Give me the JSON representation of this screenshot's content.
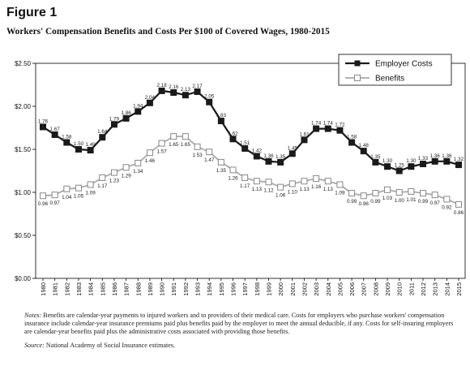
{
  "figure_label": "Figure 1",
  "notes_label": "Notes:",
  "notes_text": "Benefits are calendar-year payments to injured workers and to providers of their medical care. Costs for employers who purchase workers' compensation insurance include calendar-year insurance premiums paid plus benefits paid by the employer to meet the annual deducible, if any. Costs for self-insuring employers are calendar-year benefits paid plus the administrative costs associated with providing those benefits.",
  "source_label": "Source:",
  "source_text": "National Academy of Social Insurance estimates.",
  "colors": {
    "employer": "#1a1a1a",
    "benefits": "#aaaaaa",
    "axis": "#000000"
  },
  "chart_data": {
    "type": "line",
    "title": "Workers' Compensation Benefits and Costs Per $100 of Covered Wages, 1980-2015",
    "x": [
      "1980",
      "1981",
      "1982",
      "1983",
      "1984",
      "1985",
      "1986",
      "1987",
      "1988",
      "1989",
      "1990",
      "1991",
      "1992",
      "1993",
      "1994",
      "1995",
      "1996",
      "1997",
      "1998",
      "1999",
      "2000",
      "2001",
      "2002",
      "2003",
      "2004",
      "2005",
      "2006",
      "2007",
      "2008",
      "2009",
      "2010",
      "2011",
      "2012",
      "2013",
      "2014",
      "2015"
    ],
    "y_ticks": [
      "$0.00",
      "$0.50",
      "$1.00",
      "$1.50",
      "$2.00",
      "$2.50"
    ],
    "ylim": [
      0,
      2.5
    ],
    "legend_position": "top-right",
    "grid": false,
    "series": [
      {
        "name": "Employer Costs",
        "values": [
          1.76,
          1.67,
          1.58,
          1.5,
          1.49,
          1.64,
          1.79,
          1.86,
          1.94,
          2.04,
          2.18,
          2.16,
          2.13,
          2.17,
          2.05,
          1.83,
          1.62,
          1.51,
          1.42,
          1.36,
          1.35,
          1.45,
          1.61,
          1.74,
          1.74,
          1.72,
          1.58,
          1.48,
          1.35,
          1.3,
          1.25,
          1.3,
          1.33,
          1.36,
          1.36,
          1.32
        ]
      },
      {
        "name": "Benefits",
        "values": [
          0.96,
          0.97,
          1.04,
          1.05,
          1.09,
          1.17,
          1.23,
          1.29,
          1.34,
          1.46,
          1.57,
          1.65,
          1.65,
          1.53,
          1.47,
          1.35,
          1.26,
          1.17,
          1.13,
          1.12,
          1.06,
          1.1,
          1.13,
          1.16,
          1.13,
          1.09,
          0.99,
          0.96,
          0.99,
          1.03,
          1.0,
          1.01,
          0.99,
          0.97,
          0.92,
          0.86
        ]
      }
    ]
  }
}
